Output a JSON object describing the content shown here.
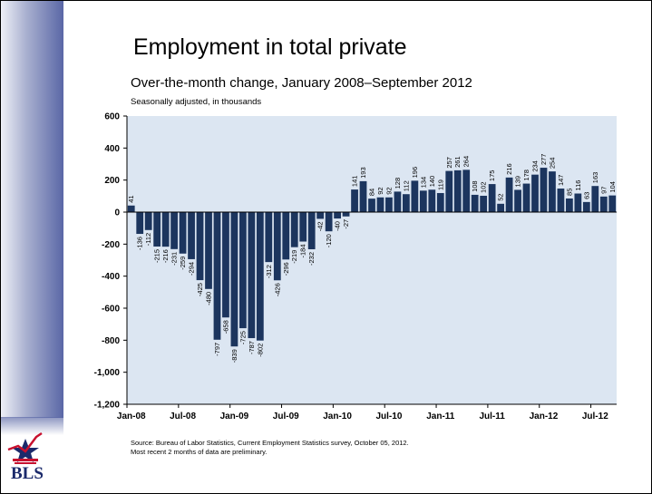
{
  "title": "Employment in total private",
  "subtitle": "Over-the-month change, January 2008–September 2012",
  "note": "Seasonally adjusted, in thousands",
  "source_line1": "Source: Bureau of Labor Statistics, Current Employment Statistics survey, October 05, 2012.",
  "source_line2": "Most recent 2 months of data are preliminary.",
  "logo_text": "BLS",
  "colors": {
    "bar": "#1c355e",
    "plot_bg": "#dce6f2",
    "accent": "#c8102e"
  },
  "chart_data": {
    "type": "bar",
    "title": "Employment in total private",
    "xlabel": "",
    "ylabel": "",
    "ylim": [
      -1200,
      600
    ],
    "yticks": [
      -1200,
      -1000,
      -800,
      -600,
      -400,
      -200,
      0,
      200,
      400,
      600
    ],
    "ytick_labels": [
      "-1,200",
      "-1,000",
      "-800",
      "-600",
      "-400",
      "-200",
      "0",
      "200",
      "400",
      "600"
    ],
    "xtick_labels": [
      "Jan-08",
      "Jul-08",
      "Jan-09",
      "Jul-09",
      "Jan-10",
      "Jul-10",
      "Jan-11",
      "Jul-11",
      "Jan-12",
      "Jul-12"
    ],
    "xtick_every": 6,
    "start_month": "Jan-08",
    "grid": false,
    "values": [
      41,
      -136,
      -112,
      -215,
      -216,
      -231,
      -259,
      -294,
      -425,
      -480,
      -797,
      -658,
      -839,
      -725,
      -787,
      -802,
      -312,
      -426,
      -296,
      -219,
      -184,
      -232,
      -42,
      -120,
      -40,
      -27,
      141,
      193,
      84,
      92,
      92,
      128,
      112,
      196,
      134,
      140,
      119,
      257,
      261,
      264,
      108,
      102,
      175,
      52,
      216,
      139,
      178,
      234,
      277,
      254,
      147,
      85,
      116,
      63,
      163,
      97,
      104
    ],
    "value_labels": [
      "41",
      "-136",
      "-112",
      "-215",
      "-216",
      "-231",
      "-259",
      "-294",
      "-425",
      "-480",
      "-797",
      "-658",
      "-839",
      "-725",
      "-787",
      "-802",
      "-312",
      "-426",
      "-296",
      "-219",
      "-184",
      "-232",
      "-42",
      "-120",
      "-40",
      "-27",
      "141",
      "193",
      "84",
      "92",
      "92",
      "128",
      "112",
      "196",
      "134",
      "140",
      "119",
      "257",
      "261",
      "264",
      "108",
      "102",
      "175",
      "52",
      "216",
      "139",
      "178",
      "234",
      "277",
      "254",
      "147",
      "85",
      "116",
      "63",
      "163",
      "97",
      "104"
    ]
  }
}
